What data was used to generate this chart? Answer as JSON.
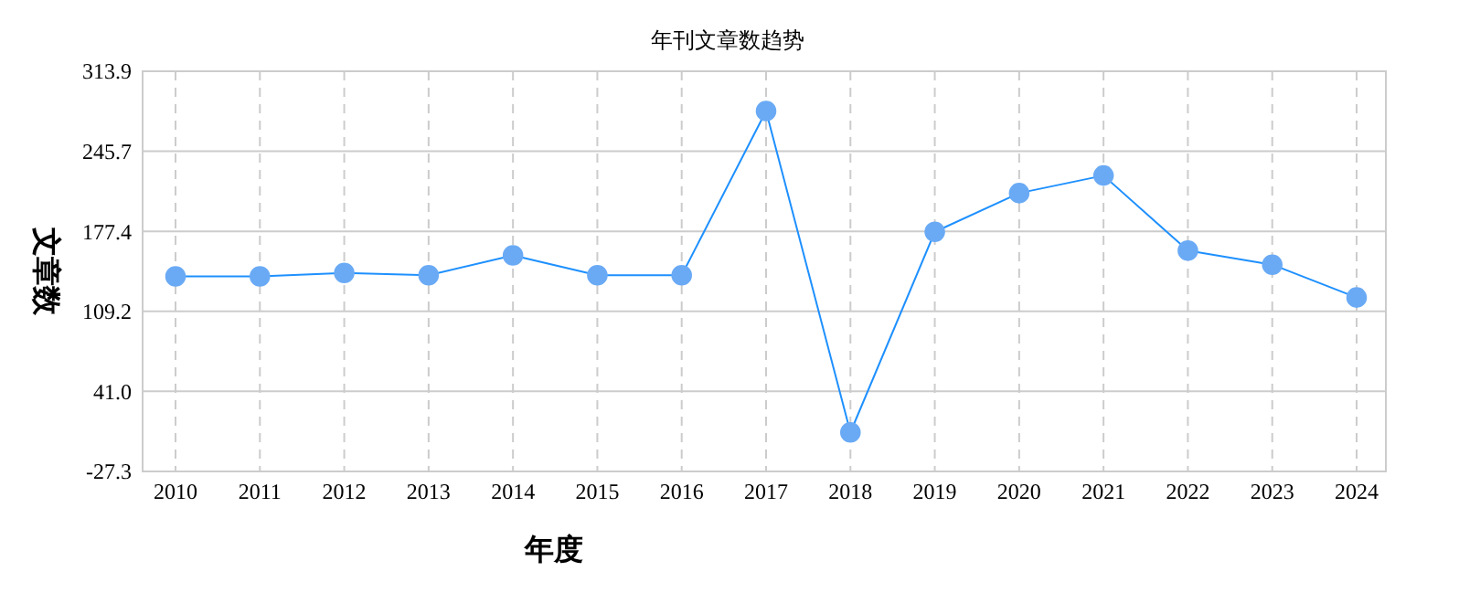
{
  "chart_data": {
    "type": "line",
    "title": "年刊文章数趋势",
    "xlabel": "年度",
    "ylabel": "文章数",
    "categories": [
      "2010",
      "2011",
      "2012",
      "2013",
      "2014",
      "2015",
      "2016",
      "2017",
      "2018",
      "2019",
      "2020",
      "2021",
      "2022",
      "2023",
      "2024"
    ],
    "series": [
      {
        "color": "#1e90ff",
        "values": [
          139,
          139,
          142,
          140,
          157,
          140,
          140,
          280,
          6,
          177,
          210,
          225,
          161,
          149,
          121
        ]
      }
    ],
    "ylim": [
      -27.3,
      313.9
    ],
    "yticks": [
      -27.3,
      {
        "value": 41.0,
        "label": "41.0"
      },
      109.2,
      177.4,
      245.7,
      313.9
    ],
    "grid": true,
    "marker": "circle"
  }
}
